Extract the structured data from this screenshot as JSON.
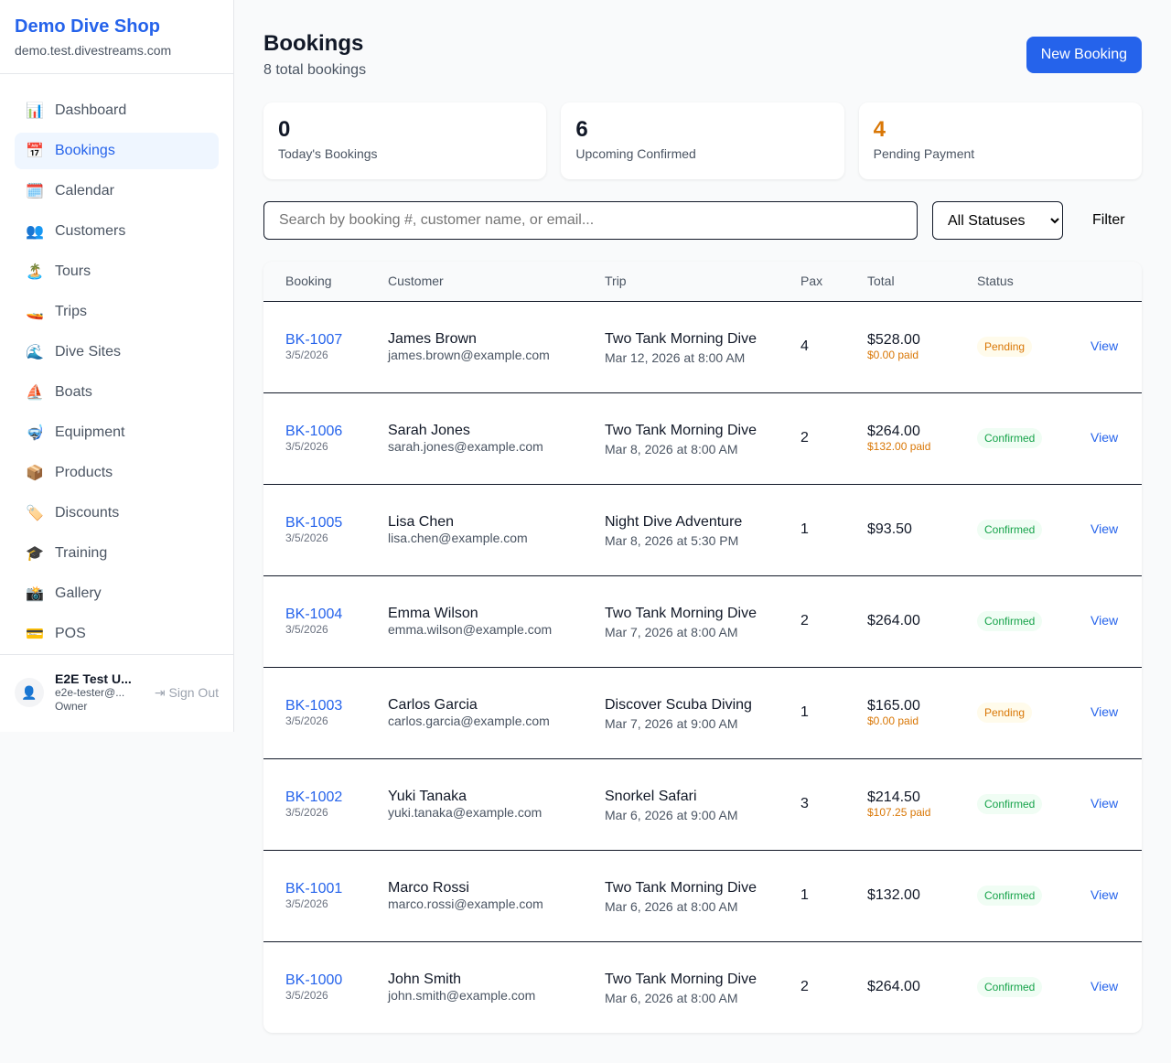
{
  "sidebar": {
    "brand": "Demo Dive Shop",
    "domain": "demo.test.divestreams.com",
    "items": [
      {
        "icon": "📊",
        "label": "Dashboard"
      },
      {
        "icon": "📅",
        "label": "Bookings",
        "active": true
      },
      {
        "icon": "🗓️",
        "label": "Calendar"
      },
      {
        "icon": "👥",
        "label": "Customers"
      },
      {
        "icon": "🏝️",
        "label": "Tours"
      },
      {
        "icon": "🚤",
        "label": "Trips"
      },
      {
        "icon": "🌊",
        "label": "Dive Sites"
      },
      {
        "icon": "⛵",
        "label": "Boats"
      },
      {
        "icon": "🤿",
        "label": "Equipment"
      },
      {
        "icon": "📦",
        "label": "Products"
      },
      {
        "icon": "🏷️",
        "label": "Discounts"
      },
      {
        "icon": "🎓",
        "label": "Training"
      },
      {
        "icon": "📸",
        "label": "Gallery"
      },
      {
        "icon": "💳",
        "label": "POS"
      }
    ],
    "user": {
      "name": "E2E Test U...",
      "email": "e2e-tester@...",
      "role": "Owner",
      "signout": "Sign Out"
    }
  },
  "header": {
    "title": "Bookings",
    "subtitle": "8 total bookings",
    "new_button": "New Booking"
  },
  "stats": [
    {
      "value": "0",
      "label": "Today's Bookings",
      "color": "#111827"
    },
    {
      "value": "6",
      "label": "Upcoming Confirmed",
      "color": "#111827"
    },
    {
      "value": "4",
      "label": "Pending Payment",
      "color": "#d97706"
    }
  ],
  "filters": {
    "search_placeholder": "Search by booking #, customer name, or email...",
    "status_selected": "All Statuses",
    "filter_label": "Filter"
  },
  "table": {
    "columns": [
      "Booking",
      "Customer",
      "Trip",
      "Pax",
      "Total",
      "Status",
      ""
    ],
    "rows": [
      {
        "id": "BK-1007",
        "date": "3/5/2026",
        "name": "James Brown",
        "email": "james.brown@example.com",
        "trip": "Two Tank Morning Dive",
        "when": "Mar 12, 2026 at 8:00 AM",
        "pax": "4",
        "total": "$528.00",
        "paid": "$0.00 paid",
        "status": "Pending",
        "action": "View"
      },
      {
        "id": "BK-1006",
        "date": "3/5/2026",
        "name": "Sarah Jones",
        "email": "sarah.jones@example.com",
        "trip": "Two Tank Morning Dive",
        "when": "Mar 8, 2026 at 8:00 AM",
        "pax": "2",
        "total": "$264.00",
        "paid": "$132.00 paid",
        "status": "Confirmed",
        "action": "View"
      },
      {
        "id": "BK-1005",
        "date": "3/5/2026",
        "name": "Lisa Chen",
        "email": "lisa.chen@example.com",
        "trip": "Night Dive Adventure",
        "when": "Mar 8, 2026 at 5:30 PM",
        "pax": "1",
        "total": "$93.50",
        "paid": "",
        "status": "Confirmed",
        "action": "View"
      },
      {
        "id": "BK-1004",
        "date": "3/5/2026",
        "name": "Emma Wilson",
        "email": "emma.wilson@example.com",
        "trip": "Two Tank Morning Dive",
        "when": "Mar 7, 2026 at 8:00 AM",
        "pax": "2",
        "total": "$264.00",
        "paid": "",
        "status": "Confirmed",
        "action": "View"
      },
      {
        "id": "BK-1003",
        "date": "3/5/2026",
        "name": "Carlos Garcia",
        "email": "carlos.garcia@example.com",
        "trip": "Discover Scuba Diving",
        "when": "Mar 7, 2026 at 9:00 AM",
        "pax": "1",
        "total": "$165.00",
        "paid": "$0.00 paid",
        "status": "Pending",
        "action": "View"
      },
      {
        "id": "BK-1002",
        "date": "3/5/2026",
        "name": "Yuki Tanaka",
        "email": "yuki.tanaka@example.com",
        "trip": "Snorkel Safari",
        "when": "Mar 6, 2026 at 9:00 AM",
        "pax": "3",
        "total": "$214.50",
        "paid": "$107.25 paid",
        "status": "Confirmed",
        "action": "View"
      },
      {
        "id": "BK-1001",
        "date": "3/5/2026",
        "name": "Marco Rossi",
        "email": "marco.rossi@example.com",
        "trip": "Two Tank Morning Dive",
        "when": "Mar 6, 2026 at 8:00 AM",
        "pax": "1",
        "total": "$132.00",
        "paid": "",
        "status": "Confirmed",
        "action": "View"
      },
      {
        "id": "BK-1000",
        "date": "3/5/2026",
        "name": "John Smith",
        "email": "john.smith@example.com",
        "trip": "Two Tank Morning Dive",
        "when": "Mar 6, 2026 at 8:00 AM",
        "pax": "2",
        "total": "$264.00",
        "paid": "",
        "status": "Confirmed",
        "action": "View"
      }
    ]
  }
}
